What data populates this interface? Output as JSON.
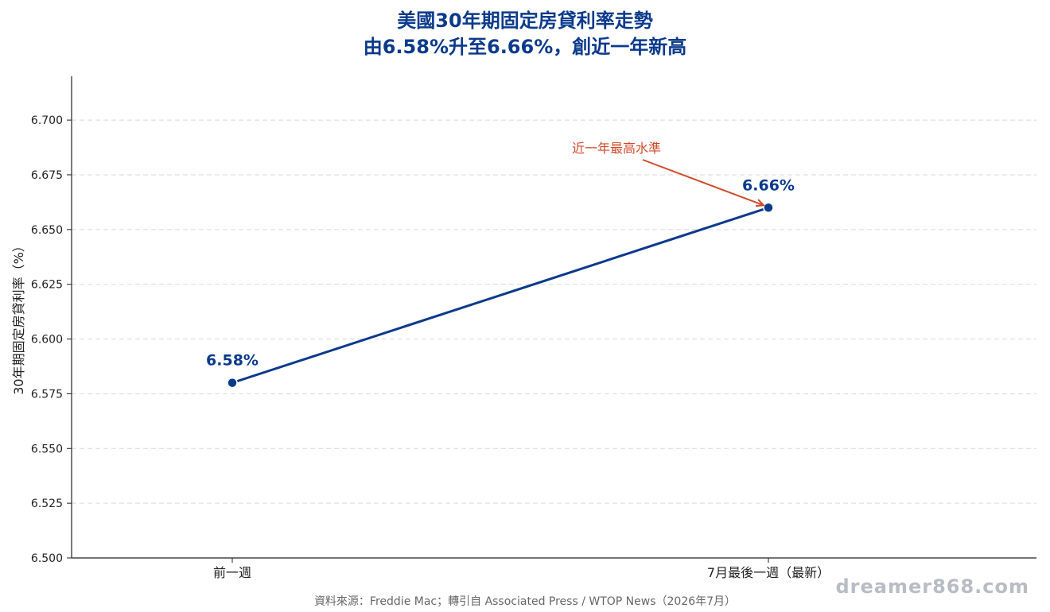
{
  "chart_data": {
    "type": "line",
    "title_lines": [
      "美國30年期固定房貸利率走勢",
      "由6.58%升至6.66%，創近一年新高"
    ],
    "ylabel": "30年期固定房貸利率（%）",
    "xlabel": "",
    "categories": [
      "前一週",
      "7月最後一週（最新）"
    ],
    "series": [
      {
        "values": [
          6.58,
          6.66
        ],
        "point_labels": [
          "6.58%",
          "6.66%"
        ]
      }
    ],
    "ylim": [
      6.5,
      6.72
    ],
    "yticks": [
      "6.500",
      "6.525",
      "6.550",
      "6.575",
      "6.600",
      "6.625",
      "6.650",
      "6.675",
      "6.700"
    ],
    "grid": true,
    "annotation": {
      "text": "近一年最高水準",
      "target_index": 1
    },
    "colors": {
      "line": "#0b3a8c",
      "annotation": "#d04a2a"
    }
  },
  "source": "資料來源：Freddie Mac；轉引自 Associated Press / WTOP News（2026年7月）",
  "watermark": "dreamer868.com"
}
